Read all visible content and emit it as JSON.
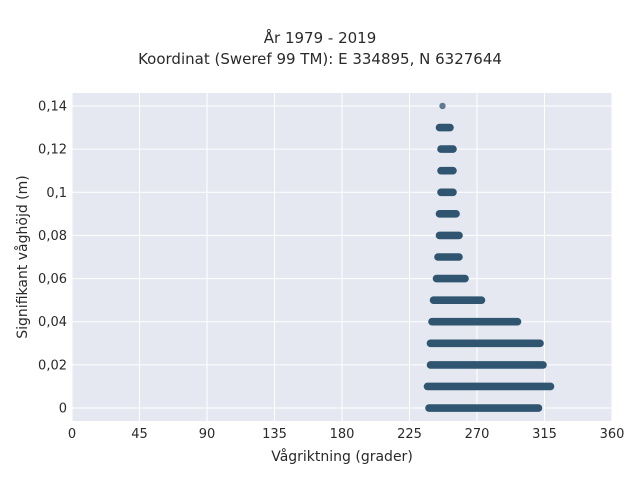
{
  "chart_data": {
    "type": "scatter",
    "title": "År 1979 - 2019",
    "subtitle": "Koordinat (Sweref 99 TM): E 334895, N 6327644",
    "xlabel": "Vågriktning (grader)",
    "ylabel": "Signifikant våghöjd (m)",
    "xlim": [
      0,
      360
    ],
    "ylim": [
      -0.006,
      0.146
    ],
    "x_ticks": [
      0,
      45,
      90,
      135,
      180,
      225,
      270,
      315,
      360
    ],
    "y_ticks": [
      0,
      0.02,
      0.04,
      0.06,
      0.08,
      0.1,
      0.12,
      0.14
    ],
    "y_tick_labels": [
      "0",
      "0,02",
      "0,04",
      "0,06",
      "0,08",
      "0,1",
      "0,12",
      "0,14"
    ],
    "grid": true,
    "marker_color": "#2f5570",
    "background_color": "#e5e8f0",
    "bands": [
      {
        "y": 0.0,
        "x_min": 238,
        "x_max": 311
      },
      {
        "y": 0.01,
        "x_min": 237,
        "x_max": 319
      },
      {
        "y": 0.02,
        "x_min": 239,
        "x_max": 314
      },
      {
        "y": 0.03,
        "x_min": 239,
        "x_max": 312
      },
      {
        "y": 0.04,
        "x_min": 240,
        "x_max": 297
      },
      {
        "y": 0.05,
        "x_min": 241,
        "x_max": 273
      },
      {
        "y": 0.06,
        "x_min": 243,
        "x_max": 262
      },
      {
        "y": 0.07,
        "x_min": 244,
        "x_max": 258
      },
      {
        "y": 0.08,
        "x_min": 245,
        "x_max": 258
      },
      {
        "y": 0.09,
        "x_min": 245,
        "x_max": 256
      },
      {
        "y": 0.1,
        "x_min": 246,
        "x_max": 254
      },
      {
        "y": 0.11,
        "x_min": 246,
        "x_max": 254
      },
      {
        "y": 0.12,
        "x_min": 246,
        "x_max": 254
      },
      {
        "y": 0.13,
        "x_min": 245,
        "x_max": 252
      }
    ],
    "points": [
      {
        "x": 247,
        "y": 0.14
      }
    ]
  }
}
